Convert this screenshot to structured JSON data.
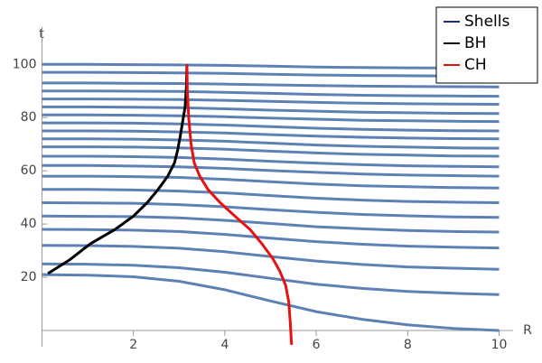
{
  "chart_data": {
    "type": "line",
    "x_label": "R",
    "y_label": "t",
    "xlim": [
      0,
      10.3
    ],
    "ylim": [
      -6,
      114
    ],
    "xticks": [
      2,
      4,
      6,
      8,
      10
    ],
    "yticks": [
      20,
      40,
      60,
      80,
      100
    ],
    "legend": "top-right",
    "series": [
      {
        "name": "Shells",
        "color": "#5e81b5",
        "x": [
          0,
          1,
          2,
          3,
          4,
          5,
          6,
          7,
          8,
          9,
          10
        ],
        "lines": [
          [
            21,
            20.8,
            20.2,
            18.5,
            15.3,
            11.1,
            7.1,
            4.2,
            2.1,
            0.8,
            0
          ],
          [
            25,
            24.9,
            24.5,
            23.6,
            21.9,
            19.6,
            17.4,
            15.8,
            14.7,
            14.0,
            13.5
          ],
          [
            32,
            31.9,
            31.6,
            30.9,
            29.6,
            27.8,
            26.1,
            24.8,
            23.9,
            23.4,
            23
          ],
          [
            38,
            37.9,
            37.7,
            37.2,
            36.1,
            34.7,
            33.4,
            32.4,
            31.7,
            31.3,
            31
          ],
          [
            43,
            42.9,
            42.8,
            42.3,
            41.4,
            40.2,
            39.0,
            38.2,
            37.6,
            37.2,
            37
          ],
          [
            48,
            47.9,
            47.8,
            47.3,
            46.5,
            45.4,
            44.4,
            43.6,
            43.1,
            42.7,
            42.5
          ],
          [
            53,
            53,
            52.8,
            52.4,
            51.7,
            50.7,
            49.7,
            49,
            48.5,
            48.2,
            48
          ],
          [
            58,
            58,
            57.8,
            57.5,
            56.8,
            55.9,
            55,
            54.4,
            54,
            53.7,
            53.5
          ],
          [
            62,
            62,
            61.8,
            61.5,
            60.9,
            60.1,
            59.4,
            58.8,
            58.4,
            58.2,
            58
          ],
          [
            65.5,
            65.5,
            65.3,
            65,
            64.4,
            63.6,
            62.9,
            62.3,
            61.9,
            61.7,
            61.5
          ],
          [
            69,
            69,
            68.9,
            68.6,
            68.1,
            67.4,
            66.7,
            66.2,
            65.9,
            65.6,
            65.5
          ],
          [
            72,
            72,
            71.9,
            71.6,
            71.1,
            70.4,
            69.7,
            69.2,
            68.9,
            68.6,
            68.5
          ],
          [
            75,
            75,
            74.9,
            74.6,
            74.2,
            73.6,
            73,
            72.6,
            72.3,
            72.1,
            72
          ],
          [
            78,
            78,
            77.9,
            77.6,
            77.2,
            76.6,
            76,
            75.6,
            75.3,
            75.1,
            75
          ],
          [
            81,
            81,
            80.9,
            80.7,
            80.3,
            79.8,
            79.4,
            79,
            78.8,
            78.6,
            78.5
          ],
          [
            84,
            84,
            83.9,
            83.7,
            83.3,
            82.8,
            82.4,
            82,
            81.8,
            81.6,
            81.5
          ],
          [
            87,
            87,
            86.9,
            86.8,
            86.5,
            86.1,
            85.7,
            85.4,
            85.2,
            85.1,
            85
          ],
          [
            90,
            90,
            89.9,
            89.8,
            89.5,
            89.1,
            88.7,
            88.4,
            88.2,
            88.1,
            88
          ],
          [
            93,
            93,
            92.9,
            92.8,
            92.6,
            92.3,
            92,
            91.8,
            91.7,
            91.6,
            91.5
          ],
          [
            97,
            97,
            96.9,
            96.8,
            96.6,
            96.3,
            96,
            95.8,
            95.7,
            95.6,
            95.5
          ],
          [
            100,
            100,
            99.9,
            99.8,
            99.6,
            99.3,
            99,
            98.8,
            98.7,
            98.6,
            98.5
          ]
        ]
      },
      {
        "name": "BH",
        "color": "#000000",
        "x": [
          0.13,
          0.6,
          1.06,
          1.6,
          2,
          2.3,
          2.54,
          2.75,
          2.9,
          2.97,
          3.03,
          3.13,
          3.16,
          3.17
        ],
        "values": [
          21.4,
          26.5,
          32.6,
          38,
          43,
          48,
          53,
          58,
          63,
          68,
          73.5,
          84,
          92,
          100
        ]
      },
      {
        "name": "CH",
        "color": "#e8110f",
        "x": [
          3.17,
          3.18,
          3.21,
          3.26,
          3.33,
          3.45,
          3.63,
          3.9,
          4.22,
          4.55,
          4.81,
          5.05,
          5.2,
          5.33,
          5.4,
          5.43,
          5.46
        ],
        "values": [
          100,
          90,
          80,
          70,
          63,
          58,
          53,
          48,
          43,
          38,
          32.6,
          27,
          22.4,
          17,
          10.5,
          3,
          -5.4
        ]
      }
    ]
  }
}
